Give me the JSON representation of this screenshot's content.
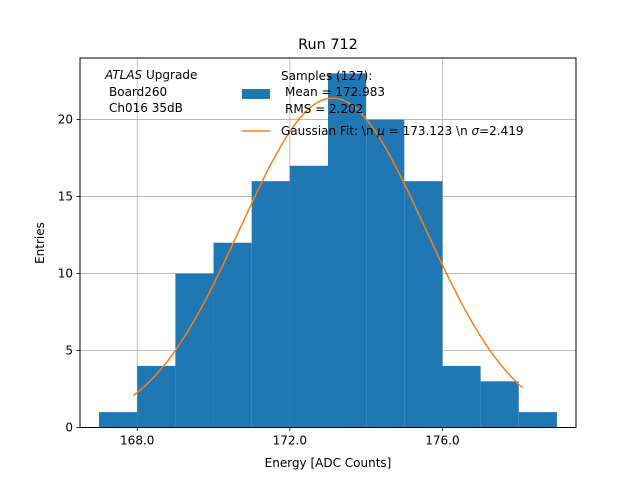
{
  "chart_data": {
    "type": "bar",
    "title": "Run 712",
    "xlabel": "Energy [ADC Counts]",
    "ylabel": "Entries",
    "xlim": [
      166.5,
      179.5
    ],
    "ylim": [
      0,
      24
    ],
    "grid": true,
    "x_ticks": [
      168.0,
      172.0,
      176.0
    ],
    "x_tick_labels": [
      "168.0",
      "172.0",
      "176.0"
    ],
    "y_ticks": [
      0,
      5,
      10,
      15,
      20
    ],
    "y_tick_labels": [
      "0",
      "5",
      "10",
      "15",
      "20"
    ],
    "bin_edges": [
      167,
      168,
      169,
      170,
      171,
      172,
      173,
      174,
      175,
      176,
      177,
      178,
      179
    ],
    "values": [
      1,
      4,
      10,
      12,
      16,
      17,
      23,
      20,
      16,
      4,
      3,
      1
    ],
    "fit": {
      "name": "Gaussian Fit",
      "mu": 173.123,
      "sigma": 2.419,
      "amplitude": 21.4,
      "x_range": [
        167.9,
        178.1
      ]
    },
    "colors": {
      "bars": "#1f77b4",
      "fit": "#ff7f0e",
      "grid": "#b0b0b0"
    },
    "annotation": {
      "experiment": "ATLAS",
      "experiment_suffix": "Upgrade",
      "line2": "Board260",
      "line3": "Ch016 35dB"
    },
    "legend": {
      "placement": "top-right",
      "hist_line1": "Samples (127):",
      "hist_line2": "Mean = 172.983",
      "hist_line3": "RMS = 2.202",
      "fit_prefix": "Gaussian Fit: \\n ",
      "fit_mu_symbol": "μ",
      "fit_middle": " = 173.123 \\n ",
      "fit_sigma_symbol": "σ",
      "fit_suffix": "=2.419"
    }
  }
}
